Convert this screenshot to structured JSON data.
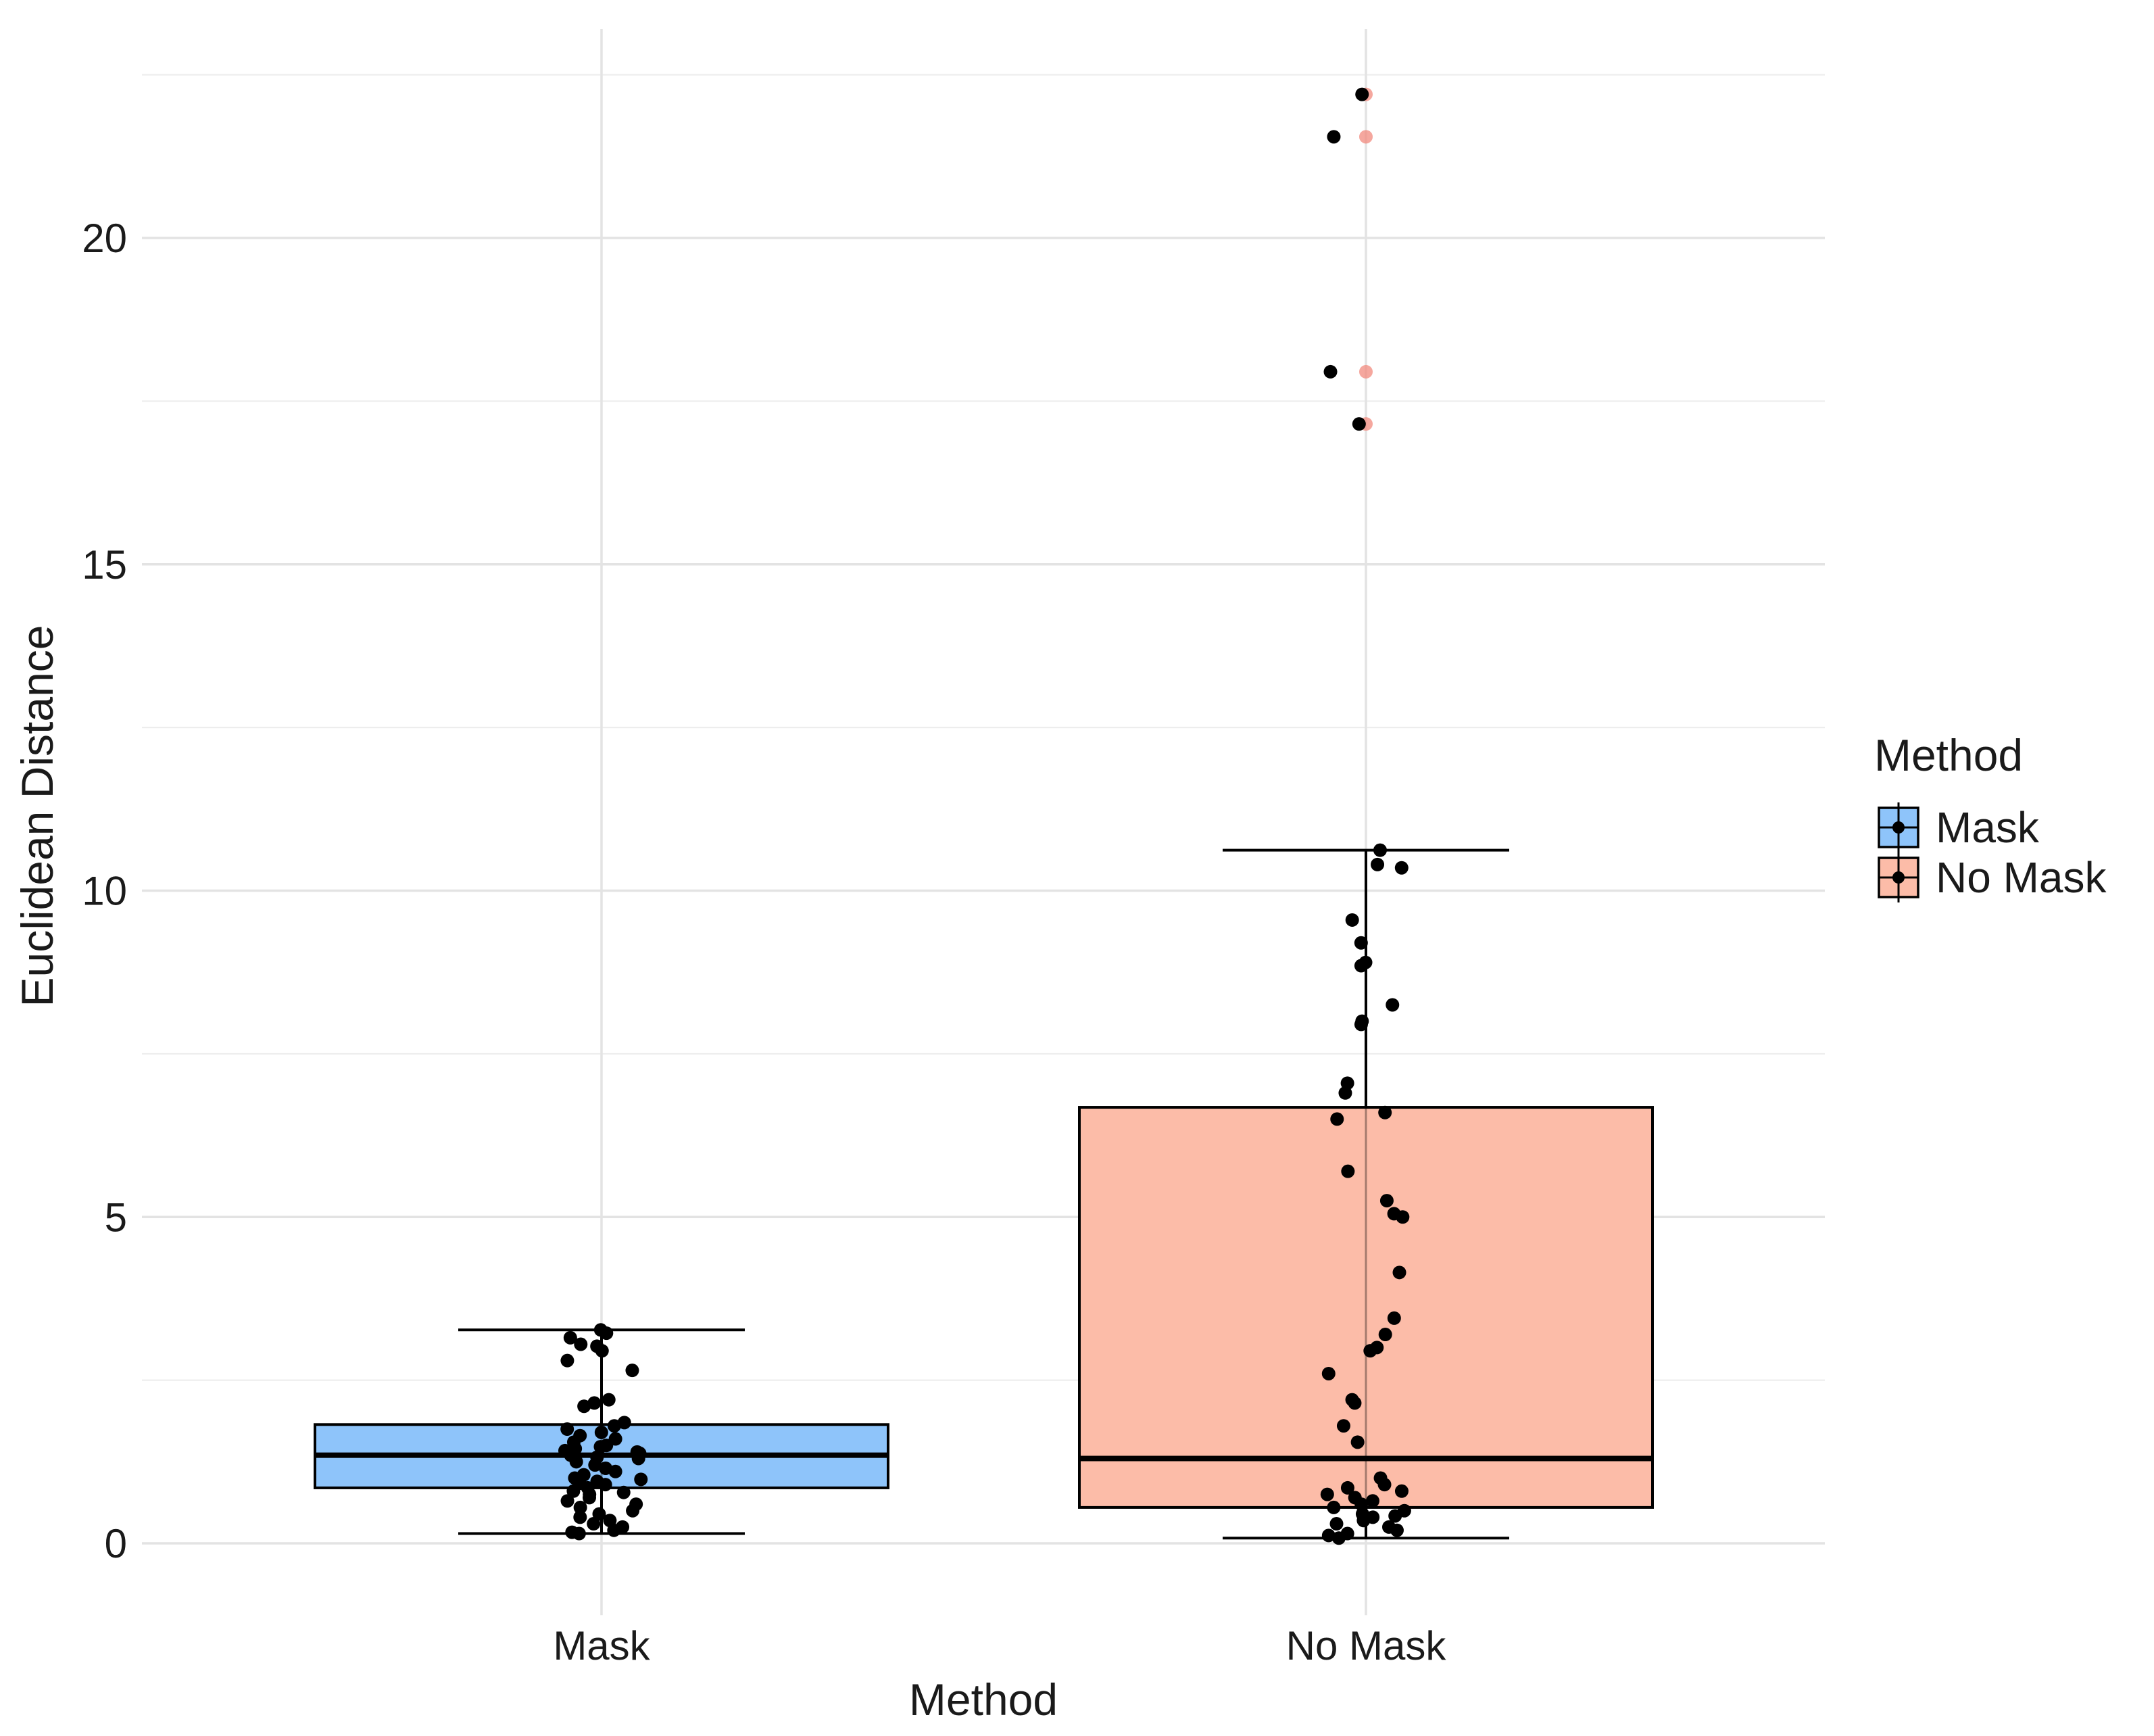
{
  "chart_data": {
    "type": "boxplot",
    "title": "",
    "xlabel": "Method",
    "ylabel": "Euclidean Distance",
    "ylim": [
      -1.1,
      23.2
    ],
    "yticks": [
      0,
      5,
      10,
      15,
      20
    ],
    "y_tick_labels": [
      "0",
      "5",
      "10",
      "15",
      "20"
    ],
    "grid": true,
    "legend": {
      "title": "Method",
      "position": "right",
      "entries": [
        "Mask",
        "No Mask"
      ]
    },
    "categories": [
      "Mask",
      "No Mask"
    ],
    "colors": {
      "Mask": "#8ec4fa",
      "No Mask": "#fcbca8",
      "outlier": "#f28a7d",
      "point": "#000000"
    },
    "boxes": [
      {
        "name": "Mask",
        "lower_whisker": 0.15,
        "q1": 0.85,
        "median": 1.35,
        "q3": 1.82,
        "upper_whisker": 3.27,
        "outliers": []
      },
      {
        "name": "No Mask",
        "lower_whisker": 0.08,
        "q1": 0.55,
        "median": 1.3,
        "q3": 6.68,
        "upper_whisker": 10.62,
        "outliers": [
          22.2,
          21.55,
          17.95,
          17.15
        ]
      }
    ],
    "points": [
      {
        "name": "Mask",
        "values": [
          3.27,
          3.22,
          3.15,
          3.05,
          3.02,
          2.95,
          2.8,
          2.65,
          2.2,
          2.15,
          2.1,
          1.85,
          1.8,
          1.75,
          1.7,
          1.65,
          1.6,
          1.55,
          1.5,
          1.48,
          1.45,
          1.42,
          1.4,
          1.38,
          1.35,
          1.32,
          1.3,
          1.25,
          1.2,
          1.15,
          1.1,
          1.05,
          1.0,
          0.98,
          0.95,
          0.92,
          0.9,
          0.85,
          0.8,
          0.78,
          0.75,
          0.7,
          0.65,
          0.6,
          0.55,
          0.5,
          0.45,
          0.4,
          0.35,
          0.3,
          0.25,
          0.2,
          0.17,
          0.15
        ]
      },
      {
        "name": "No Mask",
        "values": [
          22.2,
          21.55,
          17.95,
          17.15,
          10.62,
          10.4,
          10.35,
          9.55,
          9.2,
          8.9,
          8.85,
          8.25,
          8.0,
          7.95,
          7.05,
          6.9,
          6.6,
          6.5,
          5.7,
          5.25,
          5.05,
          5.0,
          4.15,
          3.45,
          3.2,
          3.0,
          2.95,
          2.6,
          2.2,
          2.15,
          1.8,
          1.55,
          1.0,
          0.9,
          0.85,
          0.8,
          0.75,
          0.7,
          0.65,
          0.6,
          0.55,
          0.5,
          0.45,
          0.42,
          0.4,
          0.35,
          0.3,
          0.25,
          0.2,
          0.15,
          0.12,
          0.08
        ]
      }
    ]
  }
}
